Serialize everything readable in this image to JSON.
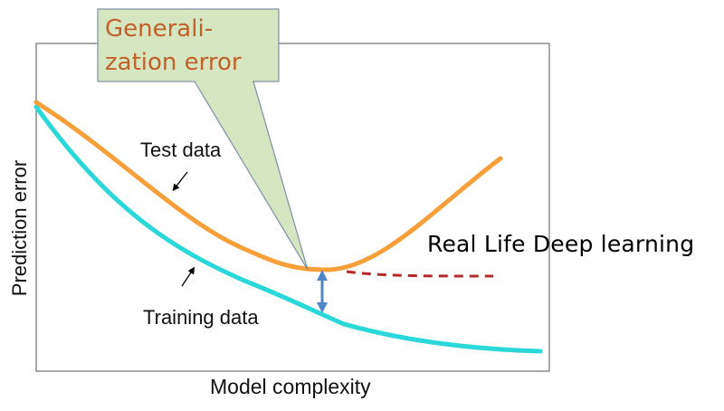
{
  "axes": {
    "xlabel": "Model complexity",
    "ylabel": "Prediction error"
  },
  "callout": {
    "line1": "Generali-",
    "line2": "zation error"
  },
  "curves": {
    "test_label": "Test data",
    "training_label": "Training data",
    "real_life_label": "Real Life Deep learning"
  },
  "colors": {
    "test_curve": "#f7a03a",
    "training_curve": "#2ad7d9",
    "real_life_curve": "#b52a2a",
    "gap_arrow": "#4f86c6",
    "callout_fill": "#d5e6c1",
    "callout_text": "#c0612b"
  },
  "icons": [
    "double-arrow-icon",
    "pointer-arrow-icon"
  ]
}
